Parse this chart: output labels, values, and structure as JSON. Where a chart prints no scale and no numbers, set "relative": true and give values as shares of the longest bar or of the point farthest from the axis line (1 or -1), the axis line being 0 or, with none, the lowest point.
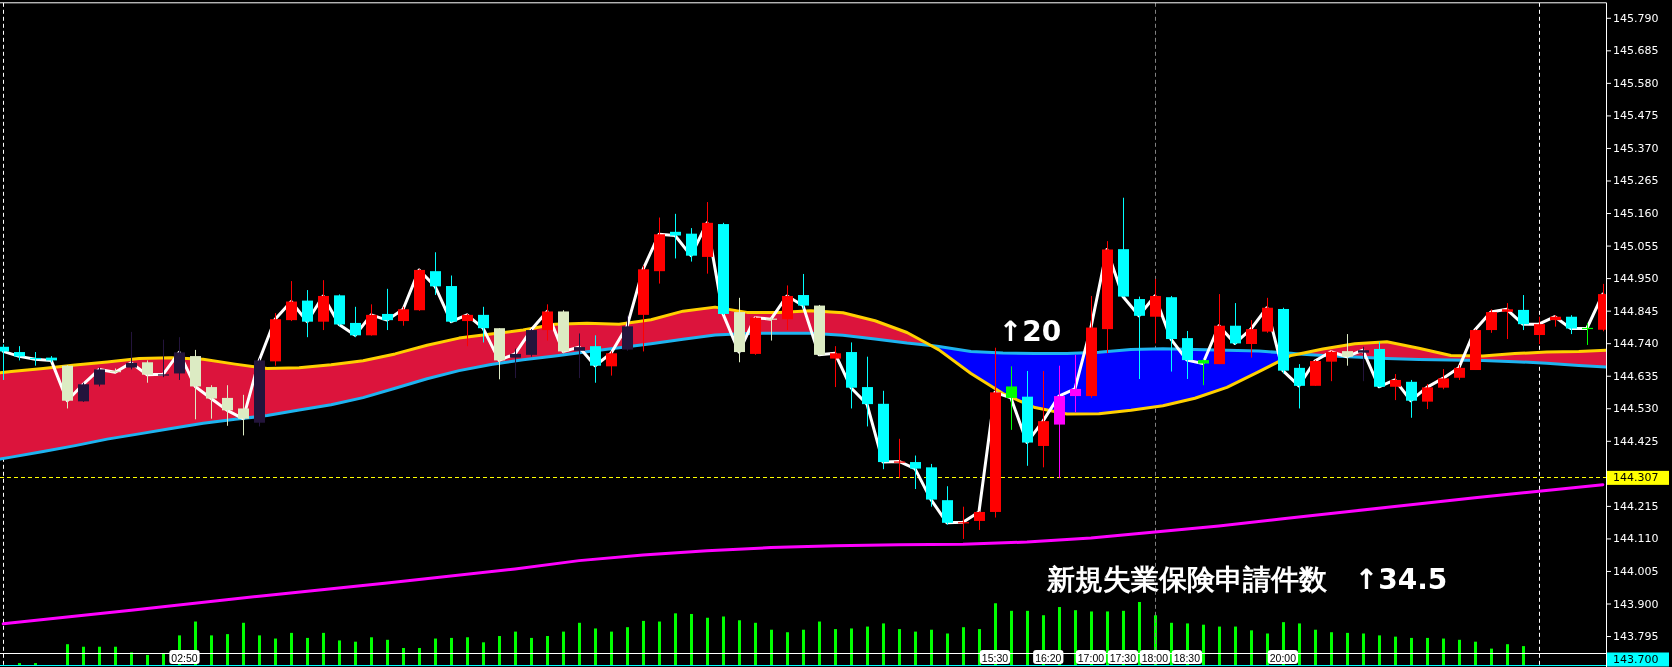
{
  "chart_data": [
    {
      "type": "candlestick",
      "x": [
        0,
        0.25,
        0.5,
        0.75,
        1,
        1.25,
        1.5,
        1.75,
        2,
        2.25,
        2.5,
        2.75,
        3,
        3.25,
        3.5,
        3.75,
        4,
        4.25,
        4.5,
        4.75,
        5,
        5.25,
        5.5,
        5.75,
        6,
        6.25,
        6.5,
        6.75,
        7,
        7.25,
        7.5,
        7.75,
        8,
        8.25,
        8.5,
        8.75,
        9,
        9.25,
        9.5,
        9.75,
        10,
        10.25,
        10.5,
        10.75,
        11,
        11.25,
        11.5,
        11.75,
        12,
        12.25,
        12.5,
        12.75,
        13,
        13.25,
        13.5,
        13.75,
        14,
        14.25,
        14.5,
        14.75,
        15,
        15.25,
        15.5,
        15.75,
        16,
        16.25,
        16.5,
        16.75,
        17,
        17.25,
        17.5,
        17.75,
        18,
        18.25,
        18.5,
        18.75,
        19,
        19.25,
        19.5,
        19.75,
        20,
        20.25,
        20.5,
        20.75,
        21,
        21.25,
        21.5,
        21.75,
        22,
        22.25,
        22.5,
        22.75,
        23,
        23.25,
        23.5,
        23.75,
        24,
        24.25,
        24.5,
        24.75,
        25
      ],
      "ohlc": [
        [
          144.73,
          144.738,
          144.623,
          144.715
        ],
        [
          144.713,
          144.732,
          144.686,
          144.699
        ],
        [
          144.694,
          144.713,
          144.669,
          144.69
        ],
        [
          144.695,
          144.7,
          144.68,
          144.686
        ],
        [
          144.669,
          144.671,
          144.531,
          144.556
        ],
        [
          144.554,
          144.614,
          144.552,
          144.609
        ],
        [
          144.608,
          144.663,
          144.602,
          144.657
        ],
        [
          144.652,
          144.66,
          144.644,
          144.648
        ],
        [
          144.663,
          144.778,
          144.657,
          144.678
        ],
        [
          144.68,
          144.686,
          144.614,
          144.64
        ],
        [
          144.637,
          144.753,
          144.632,
          144.641
        ],
        [
          144.644,
          144.761,
          144.623,
          144.712
        ],
        [
          144.7,
          144.72,
          144.496,
          144.602
        ],
        [
          144.6,
          144.606,
          144.498,
          144.563
        ],
        [
          144.565,
          144.606,
          144.475,
          144.525
        ],
        [
          144.531,
          144.575,
          144.444,
          144.498
        ],
        [
          144.485,
          144.692,
          144.473,
          144.686
        ],
        [
          144.683,
          144.839,
          144.669,
          144.819
        ],
        [
          144.816,
          144.942,
          144.813,
          144.876
        ],
        [
          144.879,
          144.913,
          144.761,
          144.811
        ],
        [
          144.811,
          144.945,
          144.784,
          144.894
        ],
        [
          144.896,
          144.899,
          144.798,
          144.802
        ],
        [
          144.807,
          144.859,
          144.761,
          144.767
        ],
        [
          144.767,
          144.867,
          144.766,
          144.833
        ],
        [
          144.836,
          144.917,
          144.784,
          144.816
        ],
        [
          144.813,
          144.859,
          144.798,
          144.851
        ],
        [
          144.848,
          144.98,
          144.846,
          144.978
        ],
        [
          144.974,
          145.035,
          144.897,
          144.925
        ],
        [
          144.926,
          144.96,
          144.808,
          144.811
        ],
        [
          144.813,
          144.836,
          144.732,
          144.833
        ],
        [
          144.833,
          144.859,
          144.744,
          144.79
        ],
        [
          144.79,
          144.79,
          144.625,
          144.686
        ],
        [
          144.695,
          144.724,
          144.629,
          144.707
        ],
        [
          144.704,
          144.787,
          144.698,
          144.784
        ],
        [
          144.784,
          144.867,
          144.75,
          144.844
        ],
        [
          144.844,
          144.848,
          144.709,
          144.715
        ],
        [
          144.717,
          144.773,
          144.629,
          144.729
        ],
        [
          144.732,
          144.767,
          144.614,
          144.669
        ],
        [
          144.667,
          144.715,
          144.637,
          144.709
        ],
        [
          144.721,
          144.83,
          144.717,
          144.796
        ],
        [
          144.833,
          144.992,
          144.715,
          144.98
        ],
        [
          144.974,
          145.147,
          144.934,
          145.093
        ],
        [
          145.101,
          145.159,
          145.015,
          145.089
        ],
        [
          145.095,
          145.113,
          145.005,
          145.024
        ],
        [
          145.02,
          145.197,
          144.966,
          145.13
        ],
        [
          145.126,
          145.13,
          144.833,
          144.836
        ],
        [
          144.842,
          144.888,
          144.68,
          144.713
        ],
        [
          144.707,
          144.827,
          144.704,
          144.824
        ],
        [
          144.821,
          144.825,
          144.75,
          144.819
        ],
        [
          144.819,
          144.928,
          144.784,
          144.894
        ],
        [
          144.897,
          144.965,
          144.853,
          144.863
        ],
        [
          144.863,
          144.865,
          144.701,
          144.704
        ],
        [
          144.692,
          144.732,
          144.6,
          144.709
        ],
        [
          144.713,
          144.744,
          144.531,
          144.598
        ],
        [
          144.6,
          144.698,
          144.473,
          144.545
        ],
        [
          144.546,
          144.588,
          144.335,
          144.358
        ],
        [
          144.356,
          144.433,
          144.306,
          144.36
        ],
        [
          144.358,
          144.379,
          144.271,
          144.337
        ],
        [
          144.341,
          144.352,
          144.214,
          144.237
        ],
        [
          144.235,
          144.28,
          144.156,
          144.162
        ],
        [
          144.162,
          144.214,
          144.11,
          144.164
        ],
        [
          144.168,
          144.199,
          144.139,
          144.197
        ],
        [
          144.197,
          144.727,
          144.179,
          144.583
        ],
        [
          144.602,
          144.667,
          144.462,
          144.565
        ],
        [
          144.569,
          144.652,
          144.346,
          144.421
        ],
        [
          144.41,
          144.652,
          144.341,
          144.49
        ],
        [
          144.479,
          144.669,
          144.306,
          144.571
        ],
        [
          144.571,
          144.704,
          144.519,
          144.594
        ],
        [
          144.571,
          144.894,
          144.565,
          144.792
        ],
        [
          144.787,
          145.071,
          144.709,
          145.044
        ],
        [
          145.045,
          145.211,
          144.892,
          144.892
        ],
        [
          144.884,
          144.892,
          144.626,
          144.83
        ],
        [
          144.827,
          144.949,
          144.741,
          144.894
        ],
        [
          144.89,
          144.894,
          144.65,
          144.755
        ],
        [
          144.758,
          144.781,
          144.626,
          144.687
        ],
        [
          144.687,
          144.689,
          144.606,
          144.676
        ],
        [
          144.674,
          144.9,
          144.674,
          144.798
        ],
        [
          144.798,
          144.871,
          144.736,
          144.741
        ],
        [
          144.739,
          144.816,
          144.695,
          144.787
        ],
        [
          144.779,
          144.888,
          144.775,
          144.856
        ],
        [
          144.852,
          144.856,
          144.644,
          144.653
        ],
        [
          144.662,
          144.674,
          144.531,
          144.604
        ],
        [
          144.604,
          144.687,
          144.604,
          144.684
        ],
        [
          144.682,
          144.717,
          144.619,
          144.714
        ],
        [
          144.716,
          144.771,
          144.669,
          144.698
        ],
        [
          144.711,
          144.73,
          144.619,
          144.719
        ],
        [
          144.723,
          144.746,
          144.599,
          144.601
        ],
        [
          144.601,
          144.642,
          144.558,
          144.623
        ],
        [
          144.617,
          144.623,
          144.501,
          144.556
        ],
        [
          144.553,
          144.61,
          144.529,
          144.599
        ],
        [
          144.598,
          144.658,
          144.593,
          144.628
        ],
        [
          144.63,
          144.671,
          144.623,
          144.662
        ],
        [
          144.655,
          144.786,
          144.655,
          144.784
        ],
        [
          144.784,
          144.851,
          144.775,
          144.842
        ],
        [
          144.843,
          144.871,
          144.755,
          144.851
        ],
        [
          144.849,
          144.897,
          144.784,
          144.803
        ],
        [
          144.768,
          144.827,
          144.739,
          144.803
        ],
        [
          144.816,
          144.832,
          144.795,
          144.827
        ],
        [
          144.827,
          144.832,
          144.771,
          144.789
        ],
        [
          144.791,
          144.806,
          144.736,
          144.789
        ],
        [
          144.785,
          144.933,
          144.78,
          144.9
        ]
      ],
      "colors": [
        "#00ffff",
        "#00ffff",
        "#00ffff",
        "#00ffff",
        "#dcebc3",
        "#23143c",
        "#23143c",
        "#dcebc3",
        "#23143c",
        "#dcebc3",
        "#23143c",
        "#23143c",
        "#dcebc3",
        "#dcebc3",
        "#dcebc3",
        "#dcebc3",
        "#23143c",
        "#ff0000",
        "#ff0000",
        "#00ffff",
        "#ff0000",
        "#00ffff",
        "#00ffff",
        "#ff0000",
        "#00ffff",
        "#ff0000",
        "#ff0000",
        "#00ffff",
        "#00ffff",
        "#ff0000",
        "#00ffff",
        "#dcebc3",
        "#23143c",
        "#23143c",
        "#ff0000",
        "#dcebc3",
        "#23143c",
        "#00ffff",
        "#ff0000",
        "#23143c",
        "#ff0000",
        "#ff0000",
        "#00ffff",
        "#00ffff",
        "#ff0000",
        "#00ffff",
        "#dcebc3",
        "#ff0000",
        "#dcebc3",
        "#ff0000",
        "#00ffff",
        "#dcebc3",
        "#ff0000",
        "#00ffff",
        "#00ffff",
        "#00ffff",
        "#ff0000",
        "#00ffff",
        "#00ffff",
        "#00ffff",
        "#ff0000",
        "#ff0000",
        "#ff0000",
        "#00ff00",
        "#00ffff",
        "#ff0000",
        "#ff00ff",
        "#ff00ff",
        "#ff0000",
        "#ff0000",
        "#00ffff",
        "#00ffff",
        "#ff0000",
        "#00ffff",
        "#00ffff",
        "#00ff00",
        "#ff0000",
        "#00ffff",
        "#ff0000",
        "#ff0000",
        "#00ffff",
        "#00ffff",
        "#ff0000",
        "#ff0000",
        "#dcebc3",
        "#23143c",
        "#00ffff",
        "#ff0000",
        "#00ffff",
        "#ff0000",
        "#ff0000",
        "#ff0000",
        "#ff0000",
        "#ff0000",
        "#ff0000",
        "#00ffff",
        "#ff0000",
        "#ff0000",
        "#00ffff",
        "#00ff00",
        "#ff0000"
      ],
      "series": [
        {
          "type": "line",
          "color": "#1eb4f0",
          "x": [
            -0.05,
            0.125,
            0.625,
            1.125,
            1.625,
            2.125,
            2.625,
            3.125,
            3.625,
            4.125,
            4.625,
            5.125,
            5.625,
            6.125,
            6.625,
            7.125,
            7.625,
            8.125,
            8.625,
            9.125,
            9.625,
            10.125,
            10.625,
            11.125,
            11.625,
            12.125,
            12.625,
            13.125,
            13.625,
            14.125,
            14.5,
            14.625,
            15.125,
            15.625,
            16.125,
            16.625,
            17.125,
            17.625,
            18.125,
            18.625,
            19.125,
            19.625,
            20.125,
            20.25,
            20.625,
            21.125,
            21.625,
            22.125,
            22.625,
            23.125,
            23.625,
            24.125,
            24.625,
            25.05
          ],
          "values": [
            144.368,
            144.374,
            144.392,
            144.411,
            144.432,
            144.449,
            144.466,
            144.483,
            144.496,
            144.508,
            144.526,
            144.543,
            144.566,
            144.596,
            144.627,
            144.653,
            144.673,
            144.688,
            144.7,
            144.714,
            144.727,
            144.74,
            144.754,
            144.768,
            144.773,
            144.774,
            144.774,
            144.767,
            144.755,
            144.742,
            144.734,
            144.731,
            144.715,
            144.71,
            144.708,
            144.708,
            144.712,
            144.721,
            144.724,
            144.721,
            144.719,
            144.716,
            144.709,
            144.707,
            144.702,
            144.697,
            144.692,
            144.689,
            144.687,
            144.686,
            144.682,
            144.677,
            144.67,
            144.665
          ]
        },
        {
          "type": "area",
          "color": "#dc143c",
          "x": [
            -0.05,
            0.125,
            0.625,
            1.125,
            1.625,
            2.125,
            2.625,
            3.125,
            3.625,
            4.125,
            4.625,
            5.125,
            5.625,
            6.125,
            6.625,
            7.125,
            7.625,
            8.125,
            8.625,
            9.125,
            9.625,
            10.125,
            10.625,
            11.125,
            11.625,
            12.125,
            12.625,
            13.125,
            13.625,
            14.125,
            14.5
          ],
          "values": [
            144.646,
            144.65,
            144.66,
            144.671,
            144.681,
            144.692,
            144.695,
            144.69,
            144.674,
            144.66,
            144.662,
            144.672,
            144.685,
            144.707,
            144.735,
            144.758,
            144.771,
            144.784,
            144.803,
            144.806,
            144.803,
            144.817,
            144.845,
            144.858,
            144.841,
            144.841,
            144.846,
            144.84,
            144.814,
            144.776,
            144.734
          ]
        },
        {
          "type": "area",
          "color": "#dc143c",
          "x": [
            20.25,
            20.625,
            21.125,
            21.625,
            22.125,
            22.625,
            23.125,
            23.625,
            24.125,
            24.625,
            25.05
          ],
          "values": [
            144.707,
            144.723,
            144.74,
            144.746,
            144.725,
            144.702,
            144.7,
            144.708,
            144.713,
            144.715,
            144.719
          ]
        },
        {
          "type": "line",
          "color": "#ffd000",
          "x": [
            -0.05,
            0.125,
            0.625,
            1.125,
            1.625,
            2.125,
            2.625,
            3.125,
            3.625,
            4.125,
            4.625,
            5.125,
            5.625,
            6.125,
            6.625,
            7.125,
            7.625,
            8.125,
            8.625,
            9.125,
            9.625,
            10.125,
            10.625,
            11.125,
            11.625,
            12.125,
            12.625,
            13.125,
            13.625,
            14.125,
            14.5,
            14.625,
            15.125,
            15.625,
            16.125,
            16.625,
            17.125,
            17.625,
            18.125,
            18.625,
            19.125,
            19.625,
            20.125,
            20.25,
            20.625,
            21.125,
            21.625,
            22.125,
            22.625,
            23.125,
            23.625,
            24.125,
            24.625,
            25.05
          ],
          "values": [
            144.646,
            144.65,
            144.66,
            144.671,
            144.681,
            144.692,
            144.695,
            144.69,
            144.674,
            144.66,
            144.662,
            144.672,
            144.685,
            144.707,
            144.735,
            144.758,
            144.771,
            144.784,
            144.803,
            144.806,
            144.803,
            144.817,
            144.845,
            144.858,
            144.841,
            144.841,
            144.846,
            144.84,
            144.814,
            144.776,
            144.734,
            144.72,
            144.644,
            144.579,
            144.534,
            144.513,
            144.514,
            144.525,
            144.54,
            144.564,
            144.599,
            144.65,
            144.702,
            144.707,
            144.723,
            144.74,
            144.746,
            144.725,
            144.702,
            144.7,
            144.708,
            144.713,
            144.715,
            144.719
          ]
        },
        {
          "type": "area",
          "color": "#0000ff",
          "x": [
            14.5,
            14.625,
            15.125,
            15.625,
            16.125,
            16.625,
            17.125,
            17.625,
            18.125,
            18.625,
            19.125,
            19.625,
            20.125,
            20.25
          ],
          "values": [
            144.734,
            144.731,
            144.715,
            144.71,
            144.708,
            144.708,
            144.712,
            144.721,
            144.724,
            144.721,
            144.719,
            144.716,
            144.709,
            144.707
          ]
        },
        {
          "type": "line",
          "color": "#ff00ff",
          "x": [
            0,
            2,
            4,
            6,
            8,
            9,
            10,
            11,
            12,
            13,
            14,
            15,
            16,
            17,
            18,
            19,
            20,
            21,
            22,
            23,
            24,
            25
          ],
          "values": [
            143.836,
            143.88,
            143.925,
            143.968,
            144.013,
            144.04,
            144.058,
            144.072,
            144.082,
            144.088,
            144.091,
            144.093,
            144.1,
            144.113,
            144.132,
            144.152,
            144.175,
            144.198,
            144.22,
            144.243,
            144.264,
            144.285
          ]
        },
        {
          "type": "line",
          "color": "#ffffff",
          "values": [
            144.715,
            144.699,
            144.69,
            144.686,
            144.556,
            144.609,
            144.657,
            144.648,
            144.678,
            144.64,
            144.641,
            144.712,
            144.602,
            144.563,
            144.525,
            144.498,
            144.686,
            144.819,
            144.876,
            144.811,
            144.894,
            144.802,
            144.767,
            144.833,
            144.816,
            144.851,
            144.978,
            144.925,
            144.811,
            144.833,
            144.79,
            144.686,
            144.707,
            144.784,
            144.844,
            144.715,
            144.729,
            144.669,
            144.709,
            144.796,
            144.98,
            145.093,
            145.089,
            145.024,
            145.13,
            144.836,
            144.713,
            144.824,
            144.819,
            144.894,
            144.863,
            144.704,
            144.709,
            144.598,
            144.545,
            144.358,
            144.36,
            144.337,
            144.237,
            144.162,
            144.164,
            144.197,
            144.583,
            144.565,
            144.421,
            144.49,
            144.571,
            144.594,
            144.792,
            145.044,
            144.892,
            144.83,
            144.894,
            144.755,
            144.687,
            144.676,
            144.798,
            144.741,
            144.787,
            144.856,
            144.653,
            144.604,
            144.684,
            144.714,
            144.698,
            144.719,
            144.601,
            144.623,
            144.556,
            144.599,
            144.628,
            144.662,
            144.784,
            144.842,
            144.851,
            144.803,
            144.803,
            144.827,
            144.789,
            144.789,
            144.9
          ]
        }
      ],
      "xlim": [
        -0.05,
        25.05
      ],
      "ylim": [
        143.698,
        145.84
      ],
      "xticks": [
        {
          "value": 2.8333,
          "label": "02:50"
        },
        {
          "value": 15.5,
          "label": "15:30"
        },
        {
          "value": 16.3333,
          "label": "16:20"
        },
        {
          "value": 17,
          "label": "17:00"
        },
        {
          "value": 17.5,
          "label": "17:30"
        },
        {
          "value": 18,
          "label": "18:00"
        },
        {
          "value": 18.5,
          "label": "18:30"
        },
        {
          "value": 20,
          "label": "20:00"
        }
      ],
      "yticks": [
        {
          "value": 145.79,
          "label": "145.790"
        },
        145.685,
        {
          "value": 145.58,
          "label": "145.580"
        },
        145.475,
        {
          "value": 145.37,
          "label": "145.370"
        },
        145.265,
        {
          "value": 145.16,
          "label": "145.160"
        },
        145.055,
        {
          "value": 144.95,
          "label": "144.950"
        },
        144.845,
        {
          "value": 144.74,
          "label": "144.740"
        },
        144.635,
        {
          "value": 144.53,
          "label": "144.530"
        },
        144.425,
        144.215,
        {
          "value": 144.11,
          "label": "144.110"
        },
        144.005,
        {
          "value": 143.9,
          "label": "143.900"
        },
        143.795
      ],
      "ref_lines": [
        {
          "axis": "y",
          "value": 144.307,
          "label": "144.307",
          "color": "#ffff00",
          "line_style": "dashed"
        },
        {
          "axis": "y",
          "value": 143.7,
          "label": "143.700",
          "color": "#00ffff"
        },
        {
          "axis": "x",
          "value": 0,
          "color": "#ffffff",
          "line_style": "dashed"
        },
        {
          "axis": "x",
          "value": 18,
          "color": "#808080",
          "line_style": "dashed"
        },
        {
          "axis": "x",
          "value": 24,
          "color": "#ffffff",
          "line_style": "dashed"
        }
      ],
      "annotations": [
        "↑20",
        "新規失業保険申請件数　↑34.5"
      ]
    },
    {
      "type": "bar",
      "relative": true,
      "tick_labels": false,
      "color": "#00ff00",
      "xlim": [
        -0.05,
        25.05
      ],
      "x": [
        0.25,
        0.5,
        1,
        1.25,
        1.5,
        1.75,
        2,
        2.25,
        2.5,
        2.75,
        3,
        3.25,
        3.5,
        3.75,
        4,
        4.25,
        4.5,
        4.75,
        5,
        5.25,
        5.5,
        5.75,
        6,
        6.25,
        6.5,
        6.75,
        7,
        7.25,
        7.5,
        7.75,
        8,
        8.25,
        8.5,
        8.75,
        9,
        9.25,
        9.5,
        9.75,
        10,
        10.25,
        10.5,
        10.75,
        11,
        11.25,
        11.5,
        11.75,
        12,
        12.25,
        12.5,
        12.75,
        13,
        13.25,
        13.5,
        13.75,
        14,
        14.25,
        14.5,
        14.75,
        15,
        15.25,
        15.5,
        15.75,
        16,
        16.25,
        16.5,
        16.75,
        17,
        17.25,
        17.5,
        17.75,
        18,
        18.25,
        18.5,
        18.75,
        19,
        19.25,
        19.5,
        19.75,
        20,
        20.25,
        20.5,
        20.75,
        21,
        21.25,
        21.5,
        21.75,
        22,
        22.25,
        22.5,
        22.75,
        23,
        23.25,
        23.5,
        23.75
      ],
      "values": [
        0.03,
        0.03,
        0.33,
        0.29,
        0.29,
        0.29,
        0.2,
        0.16,
        0.18,
        0.47,
        0.69,
        0.47,
        0.49,
        0.67,
        0.47,
        0.42,
        0.51,
        0.43,
        0.51,
        0.39,
        0.37,
        0.44,
        0.4,
        0.27,
        0.27,
        0.42,
        0.43,
        0.44,
        0.36,
        0.46,
        0.53,
        0.43,
        0.46,
        0.53,
        0.67,
        0.58,
        0.53,
        0.6,
        0.7,
        0.69,
        0.82,
        0.81,
        0.75,
        0.77,
        0.71,
        0.67,
        0.56,
        0.52,
        0.56,
        0.69,
        0.57,
        0.58,
        0.61,
        0.66,
        0.57,
        0.53,
        0.56,
        0.5,
        0.6,
        0.57,
        0.98,
        0.86,
        0.86,
        0.79,
        0.92,
        0.87,
        0.85,
        0.85,
        0.86,
        1,
        0.79,
        0.67,
        0.66,
        0.64,
        0.61,
        0.61,
        0.55,
        0.5,
        0.68,
        0.66,
        0.56,
        0.52,
        0.51,
        0.5,
        0.47,
        0.45,
        0.43,
        0.43,
        0.42,
        0.4,
        0.37,
        0.26,
        0.33,
        0.3
      ]
    }
  ]
}
